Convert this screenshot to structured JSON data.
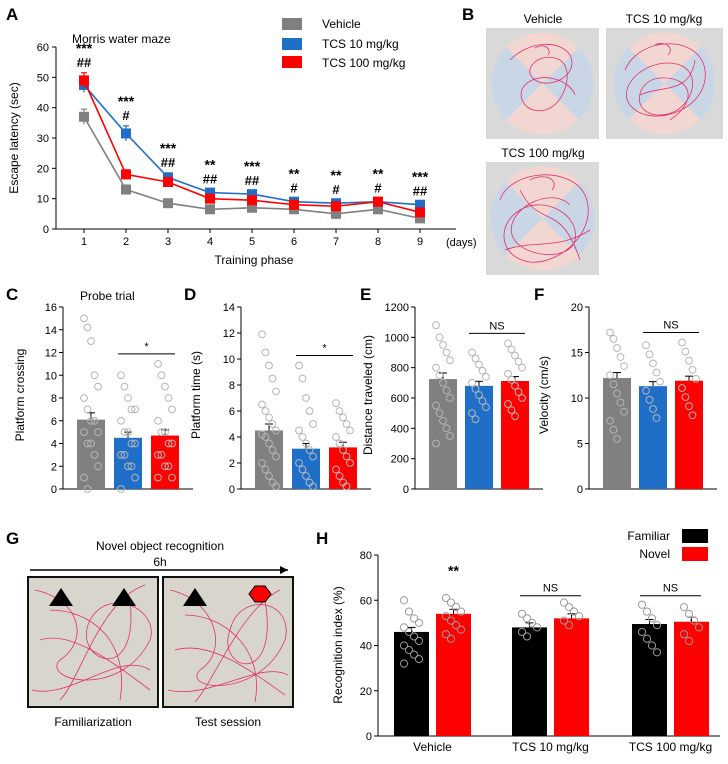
{
  "colors": {
    "vehicle": "#808080",
    "tcs10": "#1f6fc9",
    "tcs100": "#ff0000",
    "familiar": "#000000",
    "novel": "#ff0000"
  },
  "panels": {
    "A": "A",
    "B": "B",
    "C": "C",
    "D": "D",
    "E": "E",
    "F": "F",
    "G": "G",
    "H": "H"
  },
  "chart_data": [
    {
      "id": "A",
      "type": "line",
      "title": "Morris water maze",
      "xlabel": "Training phase",
      "xunit": "(days)",
      "ylabel": "Escape latency (sec)",
      "x": [
        1,
        2,
        3,
        4,
        5,
        6,
        7,
        8,
        9
      ],
      "ylim": [
        0,
        60
      ],
      "yticks": [
        0,
        10,
        20,
        30,
        40,
        50,
        60
      ],
      "series": [
        {
          "name": "Vehicle",
          "color": "#808080",
          "values": [
            37,
            13,
            8.5,
            6.5,
            7,
            6.5,
            5,
            6.5,
            3.5
          ],
          "errors": [
            2.5,
            1.5,
            1,
            0.8,
            0.8,
            0.8,
            0.8,
            0.8,
            0.8
          ]
        },
        {
          "name": "TCS 10 mg/kg",
          "color": "#1f6fc9",
          "values": [
            47.5,
            31.5,
            17,
            12,
            11.5,
            9,
            8.5,
            9,
            8
          ],
          "errors": [
            2.5,
            2.5,
            1.5,
            1,
            1,
            1,
            1,
            1,
            1
          ]
        },
        {
          "name": "TCS 100 mg/kg",
          "color": "#ff0000",
          "values": [
            49,
            18,
            15.5,
            10,
            9.5,
            8,
            7.5,
            9,
            5.5
          ],
          "errors": [
            2.5,
            1.5,
            1.5,
            1,
            1,
            1,
            1,
            1,
            1
          ]
        }
      ],
      "sig_star": [
        "***",
        "***",
        "***",
        "**",
        "***",
        "**",
        "**",
        "**",
        "***"
      ],
      "sig_hash": [
        "##",
        "#",
        "##",
        "##",
        "##",
        "#",
        "#",
        "#",
        "##"
      ]
    },
    {
      "id": "B",
      "type": "image",
      "tiles": [
        "Vehicle",
        "TCS 10 mg/kg",
        "TCS 100 mg/kg"
      ]
    },
    {
      "id": "C",
      "type": "bar",
      "title": "Probe trial",
      "ylabel": "Platform crossing",
      "categories": [
        "Vehicle",
        "TCS 10 mg/kg",
        "TCS 100 mg/kg"
      ],
      "values": [
        6.1,
        4.5,
        4.7
      ],
      "errors": [
        0.6,
        0.5,
        0.5
      ],
      "ylim": [
        0,
        16
      ],
      "yticks": [
        0,
        2,
        4,
        6,
        8,
        10,
        12,
        14,
        16
      ],
      "sig": "*",
      "points": [
        [
          15,
          14.2,
          13,
          10,
          9,
          8,
          7,
          6,
          6,
          5,
          5,
          4,
          4,
          3,
          2,
          1,
          0
        ],
        [
          10,
          9,
          8,
          7,
          7,
          6,
          5,
          5,
          4,
          4,
          3,
          3,
          2,
          2,
          1,
          0
        ],
        [
          11,
          10,
          9,
          8,
          7,
          6,
          5,
          5,
          4,
          4,
          3,
          3,
          2,
          2,
          1,
          1
        ]
      ]
    },
    {
      "id": "D",
      "type": "bar",
      "ylabel": "Platform time (s)",
      "categories": [
        "Vehicle",
        "TCS 10 mg/kg",
        "TCS 100 mg/kg"
      ],
      "values": [
        4.5,
        3.1,
        3.2
      ],
      "errors": [
        0.5,
        0.4,
        0.4
      ],
      "ylim": [
        0,
        14
      ],
      "yticks": [
        0,
        2,
        4,
        6,
        8,
        10,
        12,
        14
      ],
      "sig": "*",
      "points": [
        [
          11.9,
          10.5,
          9.5,
          8.5,
          7.5,
          6.5,
          6,
          5.5,
          5,
          4.5,
          4.2,
          4,
          3.5,
          3,
          2.5,
          2,
          1.5,
          1,
          0.5,
          0.2
        ],
        [
          9.5,
          8.5,
          7,
          6,
          5,
          4.5,
          4,
          3.5,
          3,
          2.5,
          2,
          1.5,
          1,
          0.5,
          0.2
        ],
        [
          6.6,
          6,
          5.5,
          5,
          4.5,
          4,
          3.5,
          3,
          2.5,
          2,
          1.5,
          1,
          0.5,
          0.2
        ]
      ]
    },
    {
      "id": "E",
      "type": "bar",
      "ylabel": "Distance traveled (cm)",
      "categories": [
        "Vehicle",
        "TCS 10 mg/kg",
        "TCS 100 mg/kg"
      ],
      "values": [
        725,
        680,
        712
      ],
      "errors": [
        40,
        30,
        30
      ],
      "ylim": [
        0,
        1200
      ],
      "yticks": [
        0,
        200,
        400,
        600,
        800,
        1000,
        1200
      ],
      "sig": "NS",
      "points": [
        [
          1080,
          1000,
          950,
          900,
          850,
          800,
          750,
          700,
          650,
          600,
          550,
          500,
          450,
          400,
          350,
          300
        ],
        [
          900,
          860,
          820,
          780,
          740,
          700,
          660,
          620,
          580,
          540,
          500,
          460
        ],
        [
          960,
          920,
          880,
          840,
          800,
          760,
          720,
          680,
          640,
          600,
          560,
          520,
          480
        ]
      ]
    },
    {
      "id": "F",
      "type": "bar",
      "ylabel": "Velocity (cm/s)",
      "categories": [
        "Vehicle",
        "TCS 10 mg/kg",
        "TCS 100 mg/kg"
      ],
      "values": [
        12.2,
        11.3,
        11.9
      ],
      "errors": [
        0.6,
        0.5,
        0.5
      ],
      "ylim": [
        0,
        20
      ],
      "yticks": [
        0,
        5,
        10,
        15,
        20
      ],
      "sig": "NS",
      "points": [
        [
          17.2,
          16.5,
          15.5,
          14.5,
          13.5,
          12.5,
          11.5,
          10.5,
          9.5,
          8.5,
          7.5,
          6.5,
          5.5
        ],
        [
          15.8,
          14.8,
          13.8,
          12.8,
          11.8,
          10.8,
          9.8,
          8.8,
          7.8
        ],
        [
          16.1,
          15.1,
          14.1,
          13.1,
          12.1,
          11.1,
          10.1,
          9.1,
          8.1
        ]
      ]
    },
    {
      "id": "G",
      "type": "image",
      "title": "Novel object recognition",
      "interval": "6h",
      "tiles": [
        "Familiarization",
        "Test session"
      ]
    },
    {
      "id": "H",
      "type": "bar",
      "ylabel": "Recognition index (%)",
      "groups": [
        "Vehicle",
        "TCS 10 mg/kg",
        "TCS 100 mg/kg"
      ],
      "ylim": [
        0,
        80
      ],
      "yticks": [
        0,
        20,
        40,
        60,
        80
      ],
      "series": [
        {
          "name": "Familiar",
          "color": "#000000",
          "values": [
            46,
            48,
            49.5
          ],
          "errors": [
            2,
            2,
            2
          ]
        },
        {
          "name": "Novel",
          "color": "#ff0000",
          "values": [
            54,
            52,
            50.5
          ],
          "errors": [
            2,
            2,
            2
          ]
        }
      ],
      "sig": [
        "**",
        "NS",
        "NS"
      ],
      "points": [
        [
          60,
          55,
          52,
          50,
          48,
          46,
          44,
          42,
          40,
          38,
          36,
          34,
          32
        ],
        [
          61,
          59,
          57,
          55,
          53,
          51,
          49,
          47,
          45,
          43
        ],
        [
          54,
          52,
          50,
          48,
          46,
          44
        ],
        [
          59,
          57,
          55,
          53,
          51,
          49
        ],
        [
          58,
          55,
          52,
          49,
          46,
          43,
          40,
          37
        ],
        [
          57,
          54,
          51,
          48,
          45,
          42
        ]
      ]
    }
  ]
}
